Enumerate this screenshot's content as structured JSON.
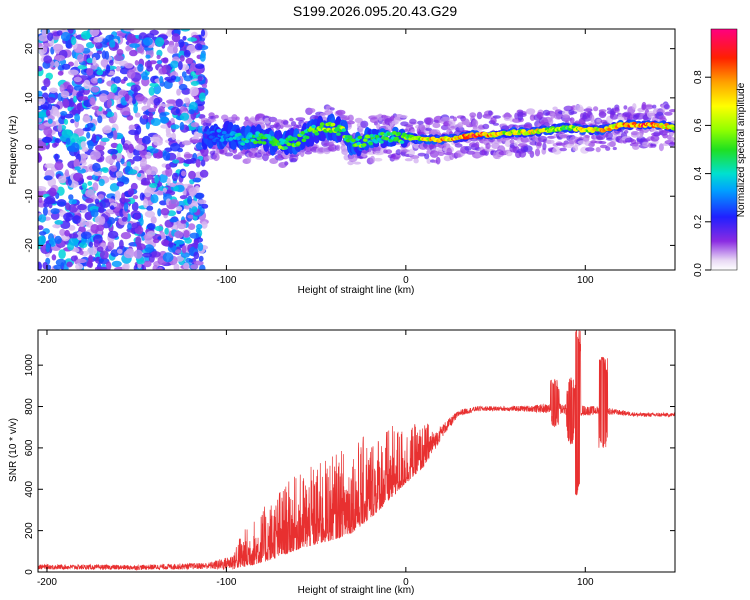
{
  "figure_title": "S199.2026.095.20.43.G29",
  "chart_data": [
    {
      "type": "heatmap",
      "title": "S199.2026.095.20.43.G29",
      "xlabel": "Height of straight line (km)",
      "ylabel": "Frequency (Hz)",
      "xlim": [
        -205,
        150
      ],
      "ylim": [
        -25,
        24
      ],
      "xticks": [
        -200,
        -100,
        0,
        100
      ],
      "xtick_labels": [
        "-200",
        "-100",
        "0",
        "100"
      ],
      "yticks": [
        20,
        10,
        0,
        -10,
        -20
      ],
      "ytick_labels": [
        "20",
        "10",
        "0",
        "-10",
        "-20"
      ],
      "noise_region": [
        -205,
        -112
      ],
      "noise_amplitude": 0.35,
      "ridge": {
        "x": [
          -112,
          -100,
          -90,
          -80,
          -70,
          -60,
          -50,
          -40,
          -35,
          -30,
          -25,
          -20,
          -10,
          0,
          10,
          20,
          30,
          40,
          50,
          60,
          70,
          80,
          90,
          100,
          110,
          120,
          130,
          140,
          150
        ],
        "freq": [
          2,
          2.5,
          1.5,
          2,
          0.5,
          1.5,
          3.5,
          4,
          3,
          1,
          1,
          1.5,
          2,
          2,
          1.5,
          1.5,
          2,
          2.5,
          2.5,
          3,
          3,
          3.5,
          4,
          3.5,
          3.5,
          4.5,
          4.5,
          4.5,
          4
        ],
        "amplitude": [
          0.25,
          0.35,
          0.45,
          0.5,
          0.55,
          0.55,
          0.55,
          0.7,
          0.6,
          0.45,
          0.6,
          0.5,
          0.5,
          0.6,
          0.75,
          0.85,
          0.8,
          0.9,
          0.75,
          0.7,
          0.75,
          0.65,
          0.6,
          0.7,
          0.75,
          0.8,
          0.9,
          0.85,
          0.7
        ]
      },
      "colorbar": {
        "label": "Normalized spectral amplitude",
        "range": [
          0,
          1
        ],
        "ticks": [
          0.0,
          0.2,
          0.4,
          0.6,
          0.8
        ],
        "tick_labels": [
          "0.0",
          "0.2",
          "0.4",
          "0.6",
          "0.8"
        ]
      }
    },
    {
      "type": "line",
      "xlabel": "Height of straight line (km)",
      "ylabel": "SNR (10 * v/v)",
      "xlim": [
        -205,
        150
      ],
      "ylim": [
        0,
        1170
      ],
      "xticks": [
        -200,
        -100,
        0,
        100
      ],
      "xtick_labels": [
        "-200",
        "-100",
        "0",
        "100"
      ],
      "yticks": [
        0,
        200,
        400,
        600,
        800,
        1000
      ],
      "ytick_labels": [
        "0",
        "200",
        "400",
        "600",
        "800",
        "1000"
      ],
      "color": "#e83030",
      "envelope": {
        "x": [
          -205,
          -150,
          -110,
          -100,
          -90,
          -80,
          -70,
          -60,
          -50,
          -40,
          -30,
          -20,
          -10,
          0,
          10,
          20,
          30,
          40,
          50,
          60,
          70,
          80,
          90,
          100,
          110,
          120,
          130,
          140,
          150
        ],
        "mean": [
          25,
          22,
          30,
          40,
          70,
          110,
          160,
          200,
          230,
          260,
          300,
          360,
          430,
          500,
          560,
          680,
          770,
          790,
          790,
          790,
          790,
          790,
          790,
          780,
          780,
          770,
          760,
          760,
          760
        ],
        "jitter": [
          15,
          15,
          20,
          40,
          70,
          100,
          130,
          140,
          150,
          160,
          170,
          160,
          140,
          110,
          80,
          40,
          20,
          15,
          15,
          15,
          20,
          30,
          40,
          30,
          25,
          15,
          12,
          12,
          12
        ]
      },
      "spikes": [
        {
          "x": 95,
          "low": 370,
          "high": 1170
        },
        {
          "x": 83,
          "low": 700,
          "high": 930
        },
        {
          "x": 110,
          "low": 600,
          "high": 1040
        },
        {
          "x": 92,
          "low": 620,
          "high": 940
        }
      ]
    }
  ]
}
